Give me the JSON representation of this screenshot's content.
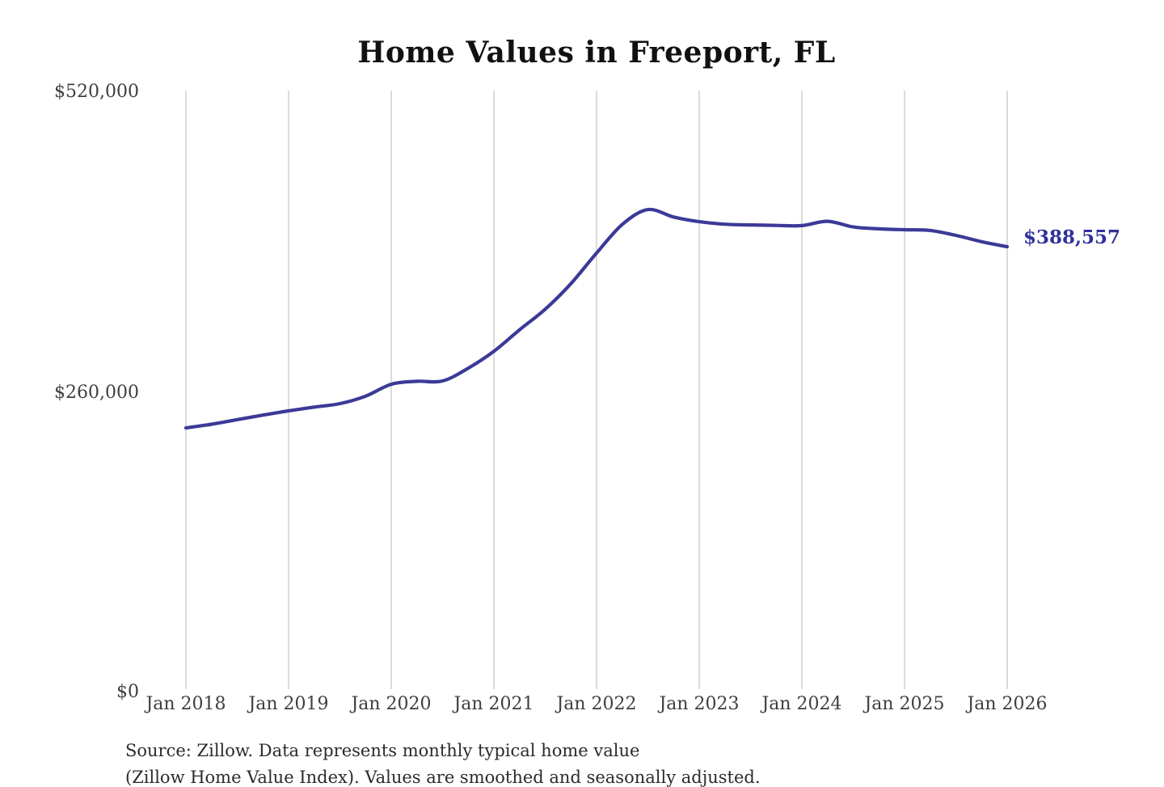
{
  "chart_data": {
    "type": "line",
    "title": "Home Values in Freeport, FL",
    "xlabel": "",
    "ylabel": "",
    "x": [
      "Jan 2018",
      "Apr 2018",
      "Jul 2018",
      "Oct 2018",
      "Jan 2019",
      "Apr 2019",
      "Jul 2019",
      "Oct 2019",
      "Jan 2020",
      "Apr 2020",
      "Jul 2020",
      "Oct 2020",
      "Jan 2021",
      "Apr 2021",
      "Jul 2021",
      "Oct 2021",
      "Jan 2022",
      "Apr 2022",
      "Jul 2022",
      "Oct 2022",
      "Jan 2023",
      "Apr 2023",
      "Jul 2023",
      "Oct 2023",
      "Jan 2024",
      "Apr 2024",
      "Jul 2024",
      "Oct 2024",
      "Jan 2025",
      "Apr 2025",
      "Jul 2025",
      "Oct 2025",
      "Jan 2026"
    ],
    "values": [
      230300,
      233500,
      237500,
      241500,
      245200,
      248500,
      251500,
      258000,
      268400,
      271000,
      271300,
      282500,
      297200,
      316000,
      334000,
      356300,
      383000,
      408000,
      421000,
      414500,
      410400,
      408200,
      407600,
      407200,
      407000,
      410800,
      405800,
      404200,
      403400,
      402800,
      398500,
      393000,
      388557
    ],
    "ylim": [
      0,
      520000
    ],
    "yticks": [
      {
        "value": 0,
        "label": "$0"
      },
      {
        "value": 260000,
        "label": "$260,000"
      },
      {
        "value": 520000,
        "label": "$520,000"
      }
    ],
    "xticks": [
      "Jan 2018",
      "Jan 2019",
      "Jan 2020",
      "Jan 2021",
      "Jan 2022",
      "Jan 2023",
      "Jan 2024",
      "Jan 2025",
      "Jan 2026"
    ],
    "grid": "vertical-only",
    "legend": "none",
    "line_color": "#3b3a97",
    "gridline_color": "#c8c8c8",
    "end_annotation": {
      "text": "$388,557",
      "value": 388557,
      "color": "#31319b"
    }
  },
  "source": {
    "line1": "Source: Zillow. Data represents monthly typical home value",
    "line2_partially_cut_off": "(Zillow Home Value Index). Values are smoothed and seasonally adjusted."
  }
}
